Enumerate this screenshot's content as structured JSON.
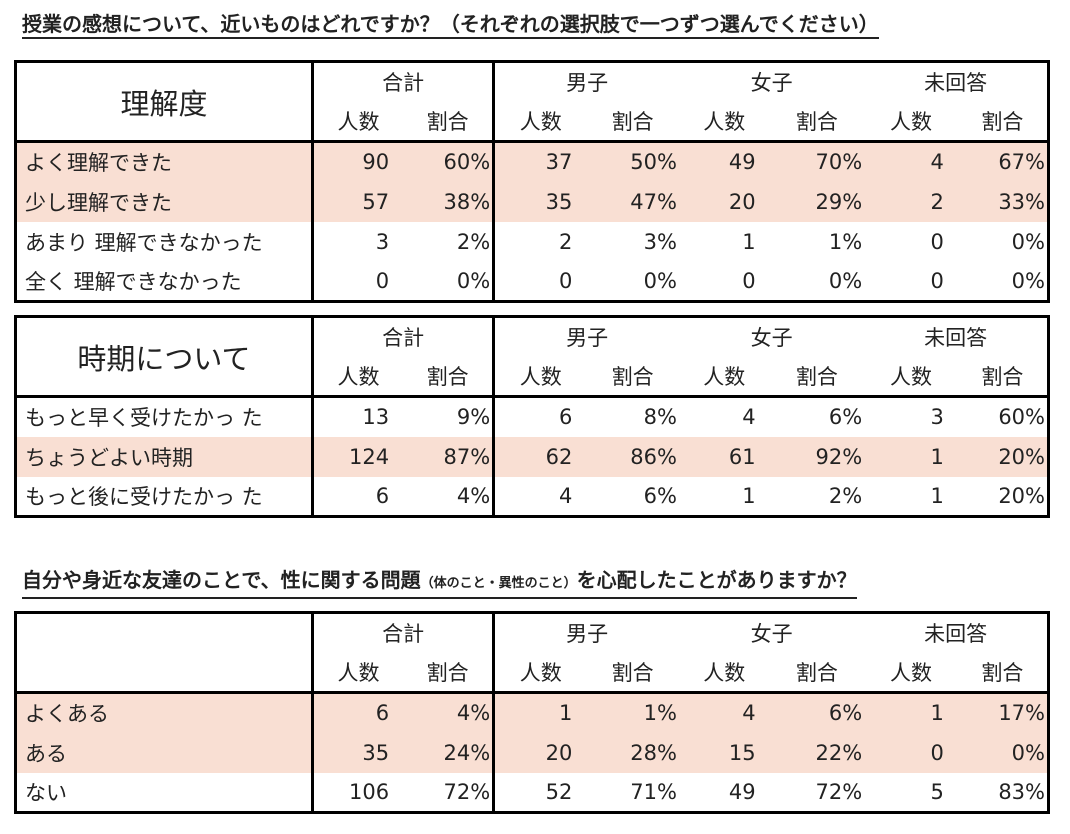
{
  "colors": {
    "highlight": "#f9dfd3",
    "border": "#000000"
  },
  "q1": {
    "heading": "授業の感想について、近いものはどれですか？（それぞれの選択肢で一つずつ選んでください）",
    "table1": {
      "title": "理解度",
      "groups": [
        "合計",
        "男子",
        "女子",
        "未回答"
      ],
      "sub": [
        "人数",
        "割合"
      ],
      "rows": [
        {
          "label": "よく理解できた",
          "highlighted": true,
          "cells": [
            "90",
            "60%",
            "37",
            "50%",
            "49",
            "70%",
            "4",
            "67%"
          ]
        },
        {
          "label": "少し理解できた",
          "highlighted": true,
          "cells": [
            "57",
            "38%",
            "35",
            "47%",
            "20",
            "29%",
            "2",
            "33%"
          ]
        },
        {
          "label": "あまり 理解できなかった",
          "highlighted": false,
          "cells": [
            "3",
            "2%",
            "2",
            "3%",
            "1",
            "1%",
            "0",
            "0%"
          ]
        },
        {
          "label": "全く 理解できなかった",
          "highlighted": false,
          "cells": [
            "0",
            "0%",
            "0",
            "0%",
            "0",
            "0%",
            "0",
            "0%"
          ]
        }
      ]
    },
    "table2": {
      "title": "時期について",
      "groups": [
        "合計",
        "男子",
        "女子",
        "未回答"
      ],
      "sub": [
        "人数",
        "割合"
      ],
      "rows": [
        {
          "label": "もっと早く受けたかっ た",
          "highlighted": false,
          "cells": [
            "13",
            "9%",
            "6",
            "8%",
            "4",
            "6%",
            "3",
            "60%"
          ]
        },
        {
          "label": "ちょうどよい時期",
          "highlighted": true,
          "cells": [
            "124",
            "87%",
            "62",
            "86%",
            "61",
            "92%",
            "1",
            "20%"
          ]
        },
        {
          "label": "もっと後に受けたかっ た",
          "highlighted": false,
          "cells": [
            "6",
            "4%",
            "4",
            "6%",
            "1",
            "2%",
            "1",
            "20%"
          ]
        }
      ]
    }
  },
  "q2": {
    "heading_main": "自分や身近な友達のことで、性に関する問題",
    "heading_small": "（体のこと・異性のこと）",
    "heading_tail": "を心配したことがありますか？",
    "table3": {
      "title": "",
      "groups": [
        "合計",
        "男子",
        "女子",
        "未回答"
      ],
      "sub": [
        "人数",
        "割合"
      ],
      "rows": [
        {
          "label": "よくある",
          "highlighted": true,
          "cells": [
            "6",
            "4%",
            "1",
            "1%",
            "4",
            "6%",
            "1",
            "17%"
          ]
        },
        {
          "label": "ある",
          "highlighted": true,
          "cells": [
            "35",
            "24%",
            "20",
            "28%",
            "15",
            "22%",
            "0",
            "0%"
          ]
        },
        {
          "label": "ない",
          "highlighted": false,
          "cells": [
            "106",
            "72%",
            "52",
            "71%",
            "49",
            "72%",
            "5",
            "83%"
          ]
        }
      ]
    }
  }
}
